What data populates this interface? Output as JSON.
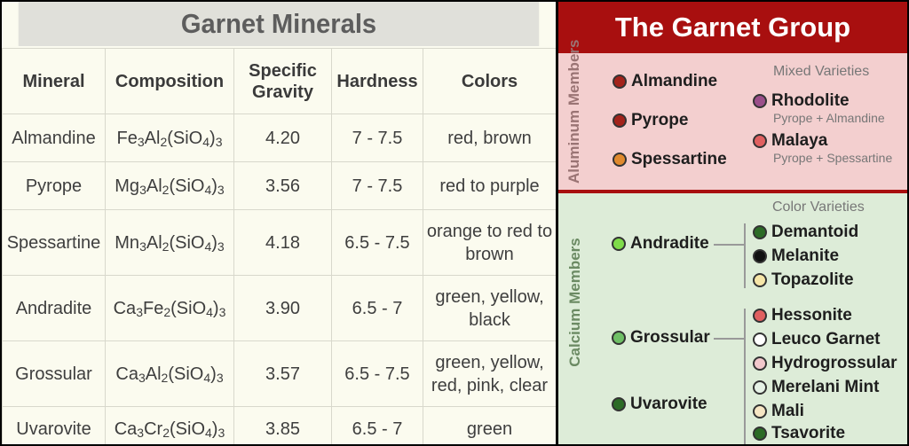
{
  "left_panel": {
    "title": "Garnet Minerals",
    "columns": [
      "Mineral",
      "Composition",
      "Specific Gravity",
      "Hardness",
      "Colors"
    ],
    "rows": [
      {
        "mineral": "Almandine",
        "formula": [
          [
            "Fe",
            "3"
          ],
          [
            "Al",
            "2"
          ],
          [
            "(SiO",
            "4"
          ],
          [
            ")",
            "3"
          ]
        ],
        "sg": "4.20",
        "hardness": "7 - 7.5",
        "colors": "red, brown"
      },
      {
        "mineral": "Pyrope",
        "formula": [
          [
            "Mg",
            "3"
          ],
          [
            "Al",
            "2"
          ],
          [
            "(SiO",
            "4"
          ],
          [
            ")",
            "3"
          ]
        ],
        "sg": "3.56",
        "hardness": "7 - 7.5",
        "colors": "red to purple"
      },
      {
        "mineral": "Spessartine",
        "formula": [
          [
            "Mn",
            "3"
          ],
          [
            "Al",
            "2"
          ],
          [
            "(SiO",
            "4"
          ],
          [
            ")",
            "3"
          ]
        ],
        "sg": "4.18",
        "hardness": "6.5 - 7.5",
        "colors": "orange to red to brown"
      },
      {
        "mineral": "Andradite",
        "formula": [
          [
            "Ca",
            "3"
          ],
          [
            "Fe",
            "2"
          ],
          [
            "(SiO",
            "4"
          ],
          [
            ")",
            "3"
          ]
        ],
        "sg": "3.90",
        "hardness": "6.5 - 7",
        "colors": "green, yellow, black"
      },
      {
        "mineral": "Grossular",
        "formula": [
          [
            "Ca",
            "3"
          ],
          [
            "Al",
            "2"
          ],
          [
            "(SiO",
            "4"
          ],
          [
            ")",
            "3"
          ]
        ],
        "sg": "3.57",
        "hardness": "6.5 - 7.5",
        "colors": "green, yellow, red, pink, clear"
      },
      {
        "mineral": "Uvarovite",
        "formula": [
          [
            "Ca",
            "3"
          ],
          [
            "Cr",
            "2"
          ],
          [
            "(SiO",
            "4"
          ],
          [
            ")",
            "3"
          ]
        ],
        "sg": "3.85",
        "hardness": "6.5 - 7",
        "colors": "green"
      }
    ]
  },
  "right_panel": {
    "title": "The Garnet Group",
    "aluminum": {
      "label": "Aluminum Members",
      "members": [
        {
          "name": "Almandine",
          "color": "#a3231b"
        },
        {
          "name": "Pyrope",
          "color": "#a3231b"
        },
        {
          "name": "Spessartine",
          "color": "#e08a2e"
        }
      ],
      "mixed_heading": "Mixed Varieties",
      "mixed": [
        {
          "name": "Rhodolite",
          "note": "Pyrope + Almandine",
          "color": "#9b4f8a"
        },
        {
          "name": "Malaya",
          "note": "Pyrope + Spessartine",
          "color": "#e06060"
        }
      ]
    },
    "calcium": {
      "label": "Calcium Members",
      "color_heading": "Color Varieties",
      "members": [
        {
          "name": "Andradite",
          "color": "#7fdc4a"
        },
        {
          "name": "Grossular",
          "color": "#6fbf66"
        },
        {
          "name": "Uvarovite",
          "color": "#2c6b26"
        }
      ],
      "andradite_varieties": [
        {
          "name": "Demantoid",
          "color": "#2c6b26"
        },
        {
          "name": "Melanite",
          "color": "#111111"
        },
        {
          "name": "Topazolite",
          "color": "#f6e6a8"
        }
      ],
      "grossular_varieties": [
        {
          "name": "Hessonite",
          "color": "#e06060"
        },
        {
          "name": "Leuco Garnet",
          "color": "#ffffff"
        },
        {
          "name": "Hydrogrossular",
          "color": "#f2c8cc"
        },
        {
          "name": "Merelani Mint",
          "color": "#e6f2e6"
        },
        {
          "name": "Mali",
          "color": "#f6e6c4"
        },
        {
          "name": "Tsavorite",
          "color": "#2c6b26"
        }
      ]
    }
  }
}
